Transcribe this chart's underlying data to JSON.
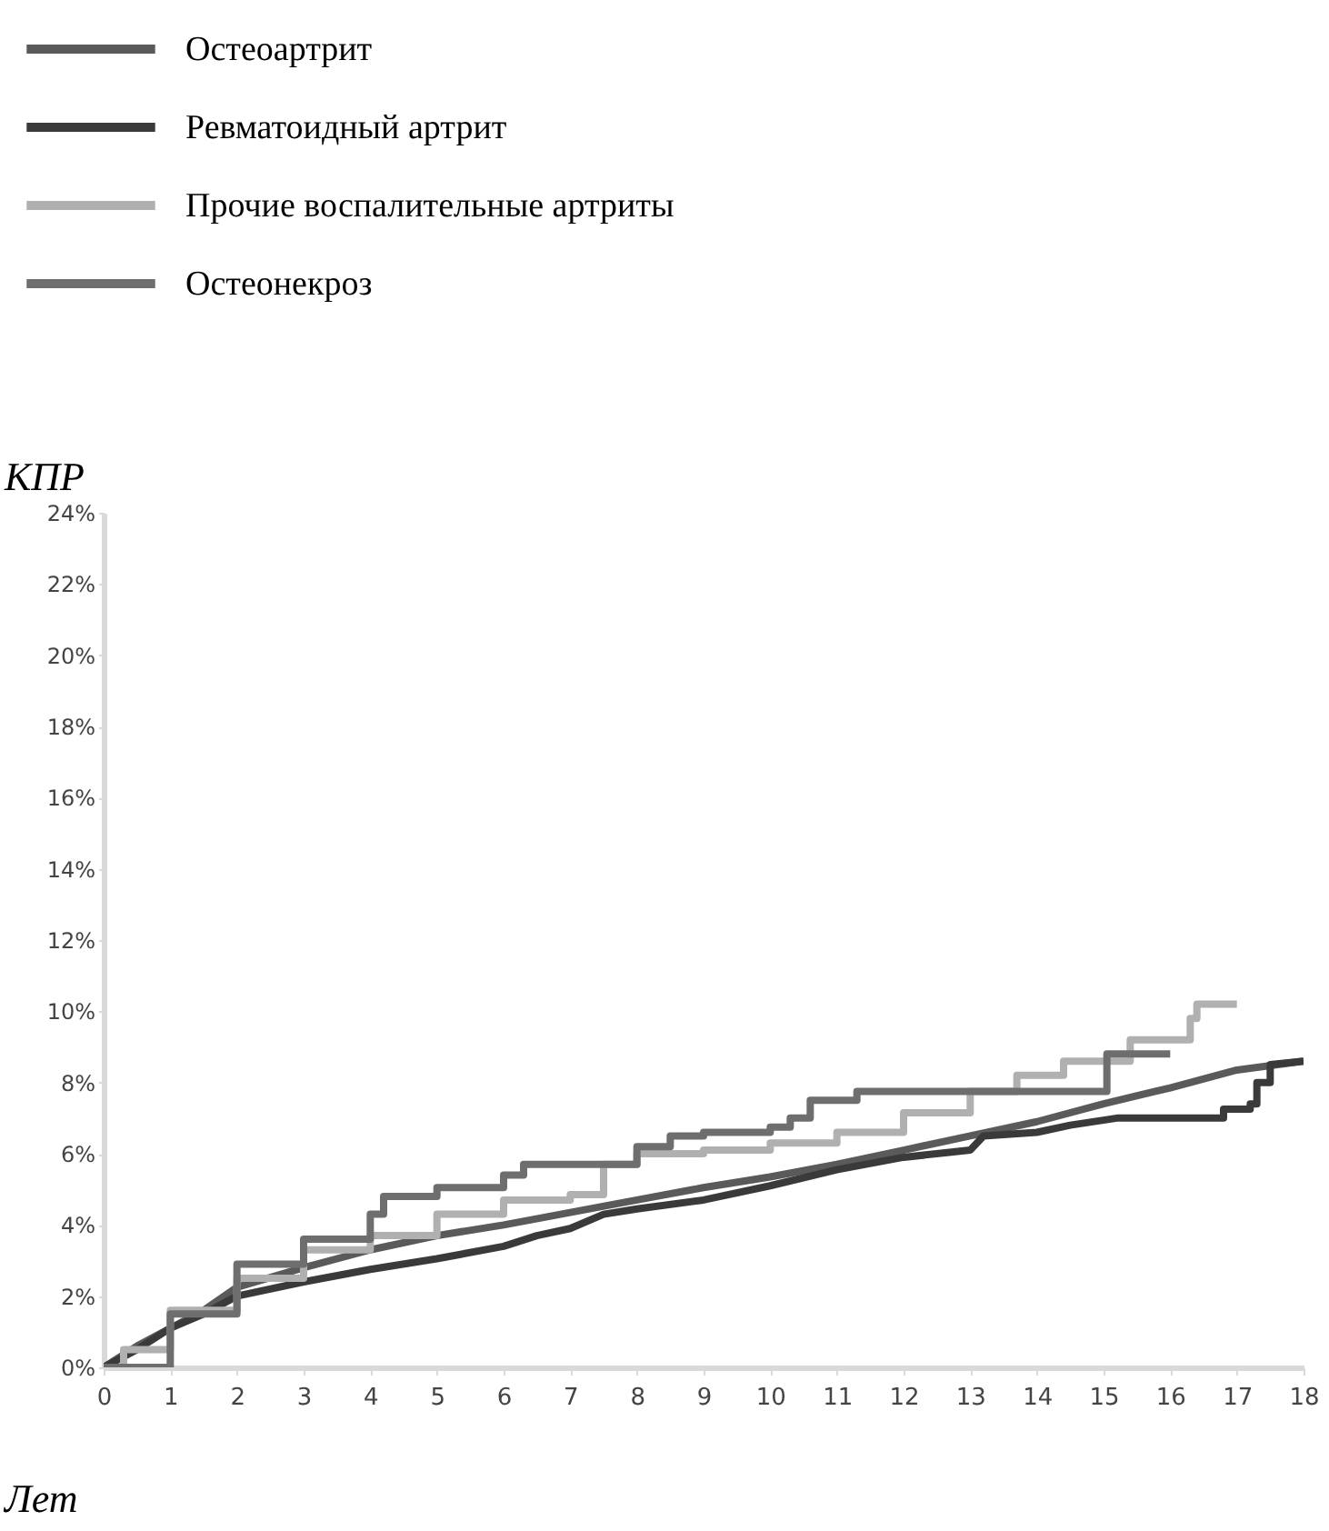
{
  "chart_data": {
    "type": "step",
    "xlabel": "Лет",
    "ylabel": "КПР",
    "xlim": [
      0,
      18
    ],
    "xticks": [
      0,
      1,
      2,
      3,
      4,
      5,
      6,
      7,
      8,
      9,
      10,
      11,
      12,
      13,
      14,
      15,
      16,
      17,
      18
    ],
    "ylim": [
      0,
      24
    ],
    "yticks": [
      {
        "value": 0,
        "label": "0%"
      },
      {
        "value": 2,
        "label": "2%"
      },
      {
        "value": 4,
        "label": "4%"
      },
      {
        "value": 6,
        "label": "6%"
      },
      {
        "value": 8,
        "label": "8%"
      },
      {
        "value": 10,
        "label": "10%"
      },
      {
        "value": 12,
        "label": "12%"
      },
      {
        "value": 14,
        "label": "14%"
      },
      {
        "value": 16,
        "label": "16%"
      },
      {
        "value": 18,
        "label": "18%"
      },
      {
        "value": 20,
        "label": "20%"
      },
      {
        "value": 22,
        "label": "22%"
      },
      {
        "value": 24,
        "label": "24%"
      }
    ],
    "grid": false,
    "legend": "top left",
    "marker": "none",
    "line_style": "solid",
    "series": [
      {
        "name": "Остеоартрит",
        "color": "#5a5a5a",
        "type": "line",
        "x": [
          0,
          0.5,
          1,
          1.5,
          2,
          3,
          4,
          5,
          6,
          7,
          8,
          9,
          10,
          11,
          12,
          13,
          14,
          15,
          16,
          17,
          18
        ],
        "values": [
          0,
          0.6,
          1.1,
          1.6,
          2.25,
          2.8,
          3.3,
          3.7,
          4.0,
          4.35,
          4.7,
          5.05,
          5.35,
          5.7,
          6.1,
          6.5,
          6.9,
          7.4,
          7.85,
          8.35,
          8.6
        ]
      },
      {
        "name": "Ревматоидный артрит",
        "color": "#3a3a3a",
        "type": "line",
        "x": [
          0,
          0.5,
          1,
          1.5,
          2,
          3,
          4,
          5,
          6,
          6.5,
          7,
          7.5,
          8,
          9,
          10,
          11,
          12,
          13,
          13.2,
          14,
          14.5,
          15.2,
          16.8,
          16.8,
          17.2,
          17.2,
          17.3,
          17.3,
          17.5,
          17.5,
          18
        ],
        "values": [
          0,
          0.5,
          1.1,
          1.5,
          2.0,
          2.4,
          2.75,
          3.05,
          3.4,
          3.7,
          3.9,
          4.3,
          4.45,
          4.7,
          5.1,
          5.55,
          5.9,
          6.1,
          6.5,
          6.6,
          6.8,
          7.0,
          7.0,
          7.25,
          7.25,
          7.4,
          7.4,
          8.0,
          8.0,
          8.5,
          8.6
        ]
      },
      {
        "name": "Прочие воспалительные артриты",
        "color": "#b0b0b0",
        "x": [
          0,
          0.3,
          1,
          2,
          3,
          4,
          5,
          6,
          7,
          7.5,
          8,
          9,
          10,
          11,
          12,
          13,
          13.7,
          14.4,
          15.4,
          16.3,
          16.4,
          17
        ],
        "values": [
          0,
          0.5,
          1.6,
          2.5,
          3.3,
          3.7,
          4.3,
          4.7,
          4.85,
          5.7,
          6.0,
          6.1,
          6.3,
          6.6,
          7.15,
          7.75,
          8.2,
          8.6,
          9.2,
          9.8,
          10.2,
          10.2
        ]
      },
      {
        "name": "Остеонекроз",
        "color": "#6e6e6e",
        "x": [
          0,
          1,
          2,
          3,
          4,
          4.2,
          5,
          6,
          6.3,
          7,
          8,
          8.5,
          9,
          10,
          10.3,
          10.6,
          11.3,
          15,
          15.05,
          16
        ],
        "values": [
          0,
          1.5,
          2.9,
          3.6,
          4.3,
          4.8,
          5.05,
          5.4,
          5.7,
          5.7,
          6.2,
          6.5,
          6.6,
          6.75,
          7.0,
          7.5,
          7.75,
          7.75,
          8.8,
          8.8
        ]
      }
    ]
  }
}
